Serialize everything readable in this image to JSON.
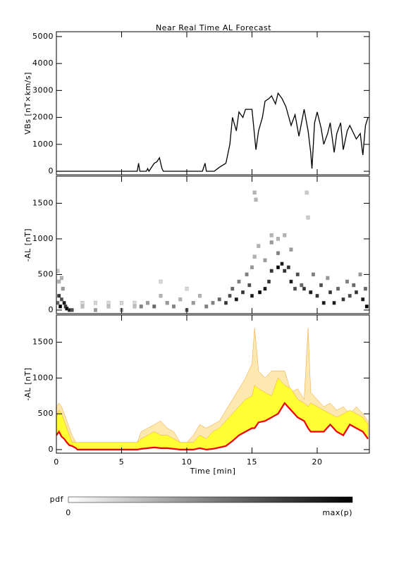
{
  "chart_data": [
    {
      "type": "line",
      "title": "Near Real Time AL Forecast",
      "y_label": "VBs [nT×km/s]",
      "color": "#000000",
      "xlim": [
        0,
        24
      ],
      "xticks": [
        0,
        5,
        10,
        15,
        20
      ],
      "ylim": [
        -130,
        5180
      ],
      "yticks": [
        0,
        1000,
        2000,
        3000,
        4000,
        5000
      ],
      "x": [
        0,
        6.2,
        6.3,
        6.4,
        6.9,
        7.0,
        7.1,
        7.5,
        7.7,
        7.9,
        8.1,
        8.2,
        11.2,
        11.4,
        11.5,
        12.1,
        12.5,
        13.0,
        13.3,
        13.5,
        13.8,
        14.0,
        14.3,
        14.5,
        15.0,
        15.3,
        15.5,
        15.8,
        16.0,
        16.3,
        16.5,
        16.8,
        17.0,
        17.3,
        17.6,
        18.0,
        18.3,
        18.6,
        19.0,
        19.3,
        19.5,
        19.6,
        19.8,
        20.0,
        20.3,
        20.5,
        20.8,
        21.0,
        21.3,
        21.5,
        21.8,
        22.0,
        22.3,
        22.5,
        22.8,
        23.0,
        23.3,
        23.5,
        23.7,
        23.9
      ],
      "values": [
        0,
        0,
        300,
        0,
        0,
        100,
        0,
        300,
        350,
        500,
        100,
        0,
        0,
        300,
        0,
        0,
        150,
        300,
        1000,
        2000,
        1500,
        2200,
        2000,
        2300,
        2300,
        800,
        1500,
        2000,
        2600,
        2700,
        2800,
        2500,
        2900,
        2700,
        2400,
        1700,
        2100,
        1300,
        2300,
        1500,
        700,
        100,
        1800,
        2200,
        1600,
        1000,
        1400,
        1800,
        700,
        1400,
        1800,
        800,
        1500,
        1700,
        1400,
        1200,
        1400,
        600,
        1700,
        2000
      ]
    },
    {
      "type": "scatter",
      "y_label": "-AL [nT]",
      "color": "#000000",
      "xlim": [
        0,
        24
      ],
      "xticks": [
        0,
        5,
        10,
        15,
        20
      ],
      "ylim": [
        -50,
        1880
      ],
      "yticks": [
        0,
        500,
        1000,
        1500
      ],
      "x": [
        0.1,
        0.2,
        0.3,
        0.4,
        0.5,
        0.6,
        0.7,
        0.2,
        0.1,
        0.8,
        1.0,
        1.2,
        0.4,
        2,
        3,
        4,
        5,
        6,
        2,
        4,
        6,
        3,
        5,
        6.5,
        7,
        7.5,
        8,
        8.5,
        9,
        9.5,
        10,
        10.5,
        11,
        11.5,
        8,
        10,
        12,
        12.5,
        13,
        13.3,
        13.5,
        13.8,
        14,
        14.3,
        14.6,
        14.8,
        15,
        15,
        15.2,
        15.3,
        15.2,
        15.5,
        15.6,
        16,
        16,
        16.3,
        16.5,
        16.5,
        16.5,
        17,
        17,
        17,
        17.3,
        17.5,
        17.5,
        17.8,
        18,
        18,
        18.3,
        18.5,
        18.8,
        19,
        19.2,
        19.3,
        19.5,
        19.7,
        20,
        20.3,
        20.5,
        20.8,
        21,
        21.3,
        21.6,
        22,
        22.3,
        22.5,
        22.8,
        23,
        23.3,
        23.5,
        23.8,
        23.7
      ],
      "y": [
        100,
        200,
        50,
        150,
        300,
        100,
        50,
        400,
        550,
        20,
        0,
        0,
        450,
        100,
        100,
        100,
        100,
        100,
        50,
        50,
        50,
        0,
        0,
        50,
        100,
        50,
        200,
        100,
        50,
        150,
        0,
        100,
        200,
        50,
        400,
        300,
        100,
        150,
        100,
        200,
        300,
        150,
        400,
        250,
        500,
        350,
        600,
        200,
        1650,
        1550,
        750,
        900,
        250,
        300,
        700,
        400,
        550,
        950,
        1050,
        600,
        800,
        1000,
        650,
        550,
        1050,
        600,
        400,
        850,
        300,
        500,
        350,
        300,
        1650,
        1300,
        250,
        500,
        200,
        350,
        100,
        450,
        250,
        100,
        300,
        150,
        400,
        200,
        350,
        250,
        500,
        150,
        50,
        300
      ],
      "p": [
        0.6,
        0.8,
        1,
        0.7,
        0.4,
        0.9,
        0.8,
        0.3,
        0.2,
        1,
        0.9,
        0.7,
        0.3,
        0.15,
        0.15,
        0.15,
        0.15,
        0.15,
        0.25,
        0.25,
        0.25,
        0.4,
        0.4,
        0.5,
        0.4,
        0.6,
        0.3,
        0.4,
        0.5,
        0.3,
        0.6,
        0.4,
        0.3,
        0.5,
        0.15,
        0.15,
        0.5,
        0.6,
        0.8,
        0.7,
        0.6,
        0.9,
        0.5,
        0.8,
        0.5,
        0.7,
        0.4,
        0.9,
        0.3,
        0.3,
        0.3,
        0.3,
        1,
        0.9,
        0.4,
        0.8,
        0.8,
        0.4,
        0.3,
        1,
        0.5,
        0.3,
        0.9,
        0.8,
        0.3,
        0.8,
        0.9,
        0.4,
        0.7,
        0.7,
        0.6,
        0.8,
        0.2,
        0.2,
        0.9,
        0.5,
        0.8,
        0.7,
        0.9,
        0.4,
        0.8,
        0.9,
        0.6,
        0.8,
        0.5,
        0.7,
        0.6,
        0.8,
        0.4,
        0.9,
        1,
        0.6
      ]
    },
    {
      "type": "area",
      "y_label": "-AL [nT]",
      "x_label": "Time [min]",
      "xlim": [
        0,
        24
      ],
      "xticks": [
        0,
        5,
        10,
        15,
        20
      ],
      "ylim": [
        -50,
        1880
      ],
      "yticks": [
        0,
        500,
        1000,
        1500
      ],
      "x": [
        0,
        0.2,
        0.4,
        0.6,
        0.8,
        1,
        1.2,
        1.5,
        1.6,
        3,
        5,
        6.2,
        6.5,
        7,
        7.5,
        8,
        8.5,
        9,
        9.5,
        10,
        10.5,
        11,
        11.5,
        12,
        12.5,
        13,
        13.5,
        14,
        14.5,
        15,
        15.2,
        15.5,
        16,
        16.5,
        17,
        17.5,
        18,
        18.5,
        19,
        19.3,
        19.5,
        20,
        20.5,
        21,
        21.5,
        22,
        22.5,
        23,
        23.5,
        23.9
      ],
      "series": [
        {
          "color": "#fde8b0",
          "values": [
            600,
            650,
            600,
            500,
            400,
            300,
            200,
            100,
            100,
            100,
            100,
            100,
            250,
            300,
            350,
            400,
            300,
            250,
            100,
            100,
            200,
            350,
            300,
            350,
            400,
            550,
            700,
            850,
            1000,
            1200,
            1700,
            1100,
            1000,
            1100,
            1100,
            1100,
            800,
            850,
            700,
            1700,
            800,
            700,
            600,
            650,
            550,
            600,
            500,
            600,
            500,
            400
          ]
        },
        {
          "color": "#ffff33",
          "values": [
            450,
            550,
            500,
            400,
            300,
            200,
            100,
            100,
            100,
            100,
            100,
            100,
            150,
            200,
            250,
            200,
            200,
            150,
            100,
            100,
            100,
            200,
            150,
            250,
            300,
            400,
            500,
            600,
            700,
            750,
            900,
            850,
            800,
            750,
            1000,
            900,
            850,
            700,
            650,
            600,
            650,
            600,
            550,
            500,
            450,
            500,
            550,
            500,
            450,
            350
          ]
        },
        {
          "color": "#ee0000",
          "values": [
            200,
            250,
            180,
            150,
            100,
            60,
            50,
            20,
            0,
            0,
            0,
            0,
            10,
            20,
            30,
            20,
            20,
            10,
            0,
            0,
            0,
            20,
            0,
            10,
            30,
            50,
            120,
            200,
            250,
            300,
            300,
            380,
            400,
            450,
            500,
            650,
            550,
            450,
            400,
            300,
            250,
            250,
            250,
            350,
            250,
            200,
            350,
            300,
            250,
            150
          ]
        }
      ]
    }
  ],
  "colorbar": {
    "label": "pdf",
    "min_label": "0",
    "max_label": "max(p)"
  }
}
